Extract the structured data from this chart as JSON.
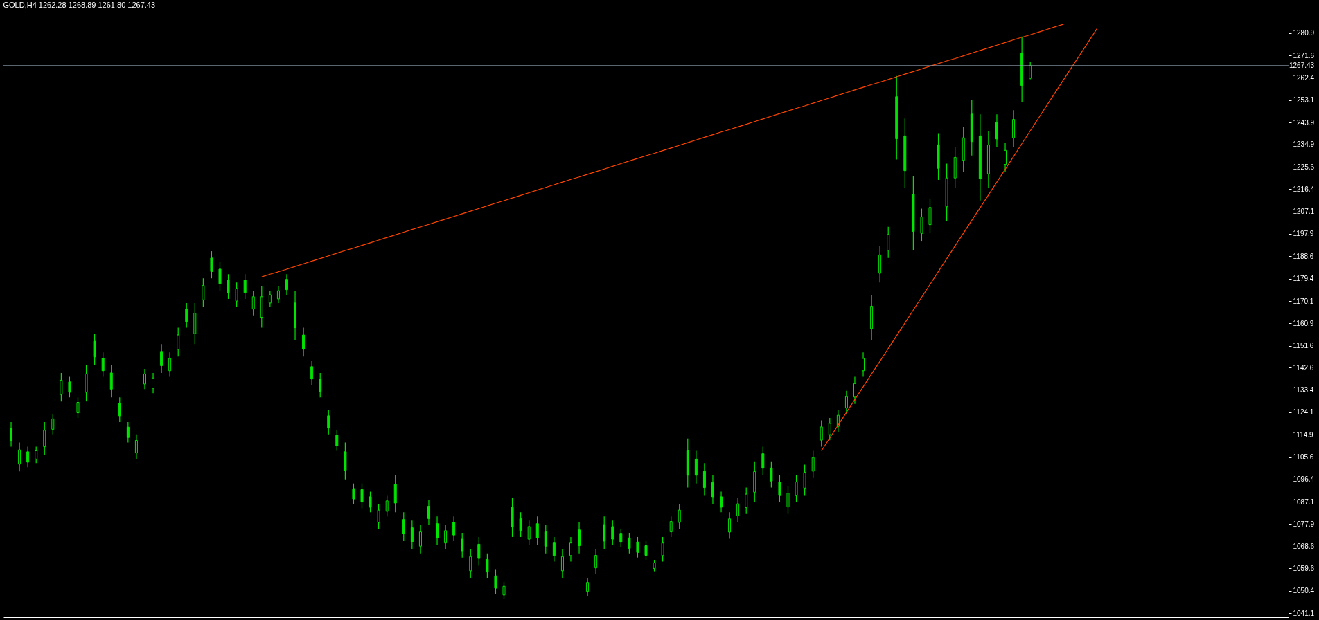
{
  "chart_data": {
    "type": "candlestick",
    "title": "GOLD,H4  1262.28 1268.89 1261.80 1267.43",
    "color": "#00e600",
    "tick_labels": "y",
    "categories": [
      null,
      null,
      null,
      null,
      null,
      null,
      null,
      null,
      null,
      null,
      null,
      null,
      null,
      null,
      null,
      null,
      null,
      null,
      null,
      null,
      null,
      null,
      null,
      null,
      null,
      null,
      null,
      null,
      null,
      null,
      null,
      null,
      null,
      null,
      null,
      null,
      null,
      null,
      null,
      null,
      null,
      null,
      null,
      null,
      null,
      null,
      null,
      null,
      null,
      null,
      null,
      null,
      null,
      null,
      null,
      null,
      null,
      null,
      null,
      null,
      null,
      null,
      null,
      null,
      null,
      null,
      null,
      null,
      null,
      null,
      null,
      null,
      null,
      null,
      null,
      null,
      null,
      null,
      null,
      null,
      null,
      null,
      null,
      null,
      null,
      null,
      null,
      null,
      null,
      null,
      null,
      null,
      null,
      null,
      null,
      null,
      null,
      null,
      null,
      null,
      null,
      null,
      null,
      null,
      null,
      null,
      null,
      null,
      null,
      null,
      null,
      null,
      null,
      null,
      null,
      null,
      null,
      null,
      null,
      null,
      null,
      null,
      null,
      null,
      null,
      null,
      null,
      null,
      null,
      null,
      null,
      null,
      null,
      null,
      null,
      null,
      null,
      null,
      null,
      null,
      null,
      null,
      null,
      null,
      null,
      null,
      null,
      null,
      null,
      null,
      null,
      null,
      null
    ],
    "ohlc": [
      [
        1117.5,
        1120.1,
        1109.9,
        1112.5
      ],
      [
        1102.7,
        1111.6,
        1099.7,
        1108.6
      ],
      [
        1107.8,
        1109.9,
        1101.4,
        1103.5
      ],
      [
        1104.8,
        1109.9,
        1103.1,
        1108.2
      ],
      [
        1109.9,
        1120.1,
        1106.5,
        1116.7
      ],
      [
        1117.1,
        1123.5,
        1115.0,
        1121.4
      ],
      [
        1131.5,
        1140.4,
        1128.6,
        1137.4
      ],
      [
        1136.7,
        1138.8,
        1130.3,
        1132.4
      ],
      [
        1123.9,
        1130.3,
        1121.8,
        1128.2
      ],
      [
        1132.4,
        1143.8,
        1128.6,
        1140.0
      ],
      [
        1153.5,
        1156.7,
        1143.8,
        1147.0
      ],
      [
        1146.4,
        1148.9,
        1138.8,
        1141.3
      ],
      [
        1140.4,
        1143.8,
        1130.3,
        1133.7
      ],
      [
        1127.8,
        1130.3,
        1120.1,
        1122.7
      ],
      [
        1118.0,
        1120.1,
        1111.6,
        1113.7
      ],
      [
        1107.3,
        1115.0,
        1104.8,
        1112.5
      ],
      [
        1135.8,
        1142.1,
        1133.7,
        1140.0
      ],
      [
        1134.1,
        1140.4,
        1132.0,
        1138.3
      ],
      [
        1149.3,
        1152.3,
        1140.4,
        1143.4
      ],
      [
        1141.3,
        1148.9,
        1138.8,
        1146.4
      ],
      [
        1150.2,
        1159.1,
        1147.2,
        1156.1
      ],
      [
        1166.8,
        1169.3,
        1159.1,
        1161.6
      ],
      [
        1156.6,
        1169.3,
        1152.3,
        1165.1
      ],
      [
        1170.6,
        1179.5,
        1167.6,
        1176.5
      ],
      [
        1187.9,
        1190.7,
        1179.5,
        1182.3
      ],
      [
        1183.3,
        1186.2,
        1174.4,
        1177.3
      ],
      [
        1178.7,
        1181.2,
        1171.0,
        1173.6
      ],
      [
        1170.1,
        1177.8,
        1167.6,
        1175.3
      ],
      [
        1178.7,
        1181.2,
        1171.0,
        1173.6
      ],
      [
        1166.8,
        1174.4,
        1164.2,
        1171.9
      ],
      [
        1163.4,
        1176.1,
        1159.1,
        1171.9
      ],
      [
        1169.3,
        1174.4,
        1167.6,
        1172.7
      ],
      [
        1171.0,
        1176.1,
        1169.3,
        1174.4
      ],
      [
        1179.1,
        1181.2,
        1172.7,
        1174.8
      ],
      [
        1169.3,
        1174.4,
        1154.0,
        1159.1
      ],
      [
        1156.1,
        1159.1,
        1147.2,
        1150.2
      ],
      [
        1143.0,
        1145.5,
        1135.4,
        1137.9
      ],
      [
        1137.9,
        1140.4,
        1130.3,
        1132.8
      ],
      [
        1122.7,
        1125.2,
        1115.0,
        1117.6
      ],
      [
        1114.6,
        1116.7,
        1108.2,
        1110.3
      ],
      [
        1107.8,
        1111.6,
        1096.4,
        1100.2
      ],
      [
        1092.6,
        1094.7,
        1086.2,
        1088.3
      ],
      [
        1092.2,
        1094.7,
        1084.5,
        1087.0
      ],
      [
        1089.2,
        1091.3,
        1082.8,
        1084.9
      ],
      [
        1078.6,
        1086.2,
        1076.0,
        1083.7
      ],
      [
        1083.2,
        1089.6,
        1081.1,
        1087.5
      ],
      [
        1094.3,
        1098.1,
        1082.8,
        1086.6
      ],
      [
        1079.8,
        1082.8,
        1070.9,
        1073.9
      ],
      [
        1076.4,
        1079.4,
        1067.5,
        1070.5
      ],
      [
        1068.8,
        1077.7,
        1065.8,
        1074.7
      ],
      [
        1085.3,
        1087.9,
        1077.7,
        1080.2
      ],
      [
        1078.1,
        1081.1,
        1069.2,
        1072.2
      ],
      [
        1070.1,
        1077.7,
        1067.5,
        1075.2
      ],
      [
        1078.6,
        1081.1,
        1070.9,
        1073.4
      ],
      [
        1071.7,
        1074.3,
        1064.1,
        1066.6
      ],
      [
        1058.6,
        1067.5,
        1055.6,
        1064.5
      ],
      [
        1069.6,
        1072.6,
        1060.7,
        1063.7
      ],
      [
        1063.3,
        1065.8,
        1055.6,
        1058.1
      ],
      [
        1056.5,
        1059.0,
        1048.9,
        1051.4
      ],
      [
        1048.6,
        1054.0,
        1046.8,
        1052.2
      ],
      [
        1084.8,
        1088.9,
        1072.6,
        1076.7
      ],
      [
        1080.2,
        1082.8,
        1072.6,
        1075.2
      ],
      [
        1071.7,
        1079.4,
        1069.2,
        1076.9
      ],
      [
        1078.1,
        1081.1,
        1069.2,
        1072.2
      ],
      [
        1074.7,
        1077.7,
        1065.8,
        1068.8
      ],
      [
        1070.1,
        1072.6,
        1062.4,
        1064.9
      ],
      [
        1058.6,
        1067.5,
        1055.6,
        1064.5
      ],
      [
        1064.9,
        1072.6,
        1062.4,
        1070.1
      ],
      [
        1075.5,
        1078.7,
        1065.8,
        1069.0
      ],
      [
        1050.1,
        1055.6,
        1048.2,
        1053.8
      ],
      [
        1059.8,
        1067.5,
        1057.3,
        1065.0
      ],
      [
        1077.7,
        1081.1,
        1067.5,
        1070.9
      ],
      [
        1076.9,
        1079.4,
        1069.2,
        1071.7
      ],
      [
        1074.1,
        1076.0,
        1068.5,
        1070.4
      ],
      [
        1072.2,
        1074.3,
        1065.8,
        1067.9
      ],
      [
        1070.5,
        1072.6,
        1064.1,
        1066.2
      ],
      [
        1069.0,
        1070.9,
        1063.1,
        1065.0
      ],
      [
        1059.6,
        1063.1,
        1058.4,
        1061.9
      ],
      [
        1064.9,
        1072.6,
        1062.4,
        1070.1
      ],
      [
        1074.7,
        1081.1,
        1072.6,
        1079.0
      ],
      [
        1078.6,
        1086.2,
        1076.0,
        1083.7
      ],
      [
        1108.2,
        1113.3,
        1093.0,
        1098.1
      ],
      [
        1104.8,
        1108.2,
        1094.7,
        1098.1
      ],
      [
        1099.7,
        1103.1,
        1089.6,
        1093.0
      ],
      [
        1095.1,
        1098.1,
        1086.2,
        1089.2
      ],
      [
        1089.2,
        1091.3,
        1082.8,
        1084.9
      ],
      [
        1074.6,
        1082.8,
        1071.9,
        1080.1
      ],
      [
        1081.3,
        1088.9,
        1078.7,
        1086.3
      ],
      [
        1084.8,
        1093.0,
        1082.1,
        1090.3
      ],
      [
        1091.1,
        1103.8,
        1086.9,
        1099.6
      ],
      [
        1107.0,
        1109.9,
        1098.1,
        1101.0
      ],
      [
        1101.1,
        1103.8,
        1093.0,
        1095.7
      ],
      [
        1095.3,
        1098.1,
        1086.9,
        1089.7
      ],
      [
        1085.0,
        1093.6,
        1082.1,
        1090.7
      ],
      [
        1089.7,
        1098.1,
        1086.9,
        1095.3
      ],
      [
        1092.8,
        1102.5,
        1089.6,
        1099.3
      ],
      [
        1099.8,
        1108.2,
        1097.0,
        1105.4
      ],
      [
        1112.6,
        1120.8,
        1109.9,
        1118.1
      ],
      [
        1114.9,
        1121.8,
        1112.6,
        1119.5
      ],
      [
        1118.3,
        1125.2,
        1116.0,
        1122.9
      ],
      [
        1125.9,
        1133.0,
        1123.5,
        1130.6
      ],
      [
        1130.4,
        1138.8,
        1127.6,
        1136.0
      ],
      [
        1141.3,
        1148.9,
        1138.8,
        1146.4
      ],
      [
        1158.7,
        1172.7,
        1154.0,
        1168.0
      ],
      [
        1181.6,
        1193.0,
        1177.8,
        1189.2
      ],
      [
        1191.1,
        1200.8,
        1187.9,
        1197.6
      ],
      [
        1254.6,
        1263.2,
        1228.6,
        1237.2
      ],
      [
        1238.4,
        1245.6,
        1216.8,
        1224.0
      ],
      [
        1214.3,
        1221.9,
        1191.3,
        1198.9
      ],
      [
        1198.1,
        1208.3,
        1194.7,
        1204.9
      ],
      [
        1201.7,
        1212.4,
        1198.1,
        1208.8
      ],
      [
        1234.7,
        1239.5,
        1220.2,
        1225.0
      ],
      [
        1209.1,
        1226.9,
        1203.2,
        1221.0
      ],
      [
        1221.0,
        1233.7,
        1216.8,
        1229.5
      ],
      [
        1228.3,
        1242.2,
        1223.6,
        1237.6
      ],
      [
        1247.4,
        1253.1,
        1230.3,
        1236.0
      ],
      [
        1238.4,
        1247.3,
        1211.7,
        1220.6
      ],
      [
        1222.7,
        1240.5,
        1216.8,
        1234.6
      ],
      [
        1243.9,
        1247.3,
        1233.7,
        1237.1
      ],
      [
        1226.6,
        1235.4,
        1223.6,
        1232.4
      ],
      [
        1237.5,
        1249.0,
        1233.7,
        1245.2
      ],
      [
        1272.7,
        1279.5,
        1252.4,
        1259.2
      ],
      [
        1262.28,
        1268.89,
        1261.8,
        1267.43
      ],
      null,
      null,
      null,
      null,
      null,
      null,
      null,
      null,
      null,
      null,
      null,
      null,
      null,
      null,
      null,
      null,
      null,
      null,
      null,
      null,
      null,
      null,
      null,
      null,
      null,
      null,
      null,
      null,
      null,
      null
    ],
    "series": [
      {
        "type": "line",
        "color": "#ff4500",
        "values": [
          null,
          null,
          null,
          null,
          null,
          null,
          null,
          null,
          null,
          null,
          null,
          null,
          null,
          null,
          null,
          null,
          null,
          null,
          null,
          null,
          null,
          null,
          null,
          null,
          null,
          null,
          null,
          null,
          null,
          null,
          1180.1,
          1181.2,
          1182.2,
          1183.3,
          1184.4,
          1185.5,
          1186.6,
          1187.7,
          1188.8,
          1189.9,
          1191.0,
          1192.0,
          1193.1,
          1194.2,
          1195.3,
          1196.4,
          1197.5,
          1198.6,
          1199.7,
          1200.8,
          1201.8,
          1202.9,
          1204.0,
          1205.1,
          1206.2,
          1207.3,
          1208.4,
          1209.5,
          1210.6,
          1211.6,
          1212.7,
          1213.8,
          1214.9,
          1216.0,
          1217.1,
          1218.2,
          1219.3,
          1220.4,
          1221.4,
          1222.5,
          1223.6,
          1224.7,
          1225.8,
          1226.9,
          1228.0,
          1229.1,
          1230.2,
          1231.2,
          1232.3,
          1233.4,
          1234.5,
          1235.6,
          1236.7,
          1237.8,
          1238.9,
          1240.0,
          1241.0,
          1242.1,
          1243.2,
          1244.3,
          1245.4,
          1246.5,
          1247.6,
          1248.7,
          1249.8,
          1250.8,
          1251.9,
          1253.0,
          1254.1,
          1255.2,
          1256.3,
          1257.4,
          1258.5,
          1259.6,
          1260.6,
          1261.7,
          1262.8,
          1263.9,
          1265.0,
          1266.1,
          1267.2,
          1268.3,
          1269.4,
          1270.4,
          1271.5,
          1272.6,
          1273.7,
          1274.8,
          1275.9,
          1277.0,
          1278.1,
          1279.2,
          1280.2,
          1281.3,
          1282.4,
          1283.5,
          1284.6,
          null,
          null,
          null,
          null,
          null,
          null,
          null,
          null,
          null,
          null,
          null,
          null,
          null,
          null,
          null,
          null,
          null,
          null,
          null,
          null,
          null,
          null,
          null,
          null,
          null,
          null
        ]
      },
      {
        "type": "line",
        "color": "#ff4500",
        "values": [
          null,
          null,
          null,
          null,
          null,
          null,
          null,
          null,
          null,
          null,
          null,
          null,
          null,
          null,
          null,
          null,
          null,
          null,
          null,
          null,
          null,
          null,
          null,
          null,
          null,
          null,
          null,
          null,
          null,
          null,
          null,
          null,
          null,
          null,
          null,
          null,
          null,
          null,
          null,
          null,
          null,
          null,
          null,
          null,
          null,
          null,
          null,
          null,
          null,
          null,
          null,
          null,
          null,
          null,
          null,
          null,
          null,
          null,
          null,
          null,
          null,
          null,
          null,
          null,
          null,
          null,
          null,
          null,
          null,
          null,
          null,
          null,
          null,
          null,
          null,
          null,
          null,
          null,
          null,
          null,
          null,
          null,
          null,
          null,
          null,
          null,
          null,
          null,
          null,
          null,
          null,
          null,
          null,
          null,
          null,
          null,
          null,
          1108.2,
          1113.5,
          1118.8,
          1124.1,
          1129.4,
          1134.7,
          1140.0,
          1145.2,
          1150.5,
          1155.8,
          1161.1,
          1166.4,
          1171.7,
          1177.0,
          1182.3,
          1187.6,
          1192.9,
          1198.2,
          1203.5,
          1208.7,
          1214.0,
          1219.3,
          1224.6,
          1229.9,
          1235.2,
          1240.5,
          1245.8,
          1251.1,
          1256.4,
          1261.7,
          1267.0,
          1272.2,
          1277.5,
          1282.8,
          null,
          null,
          null,
          null,
          null,
          null,
          null,
          null,
          null,
          null,
          null,
          null,
          null,
          null,
          null,
          null,
          null,
          null,
          null,
          null,
          null,
          null
        ]
      }
    ],
    "ref_lines": [
      {
        "axis": "y",
        "value": 1267.43,
        "label": "1267.43",
        "color": "#8c9aab"
      }
    ],
    "ylim": [
      1039.4,
      1289.7
    ],
    "yticks": [
      1041.1,
      1050.4,
      1059.6,
      1068.6,
      1077.9,
      1087.1,
      1096.4,
      1105.6,
      1114.9,
      1124.1,
      1133.4,
      1142.6,
      1151.6,
      1160.9,
      1170.1,
      1179.4,
      1188.6,
      1197.9,
      1207.1,
      1216.4,
      1225.6,
      1234.9,
      1243.9,
      1253.1,
      1262.4,
      1271.6,
      1280.9
    ]
  }
}
